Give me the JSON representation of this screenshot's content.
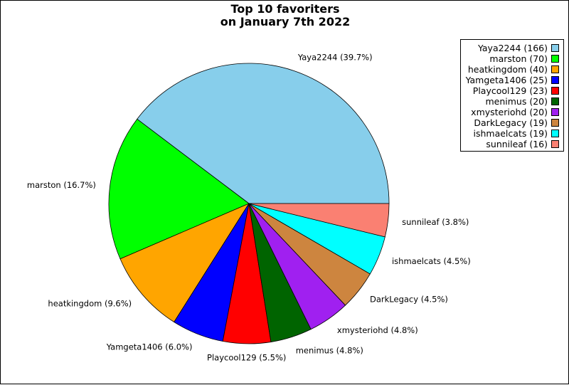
{
  "chart_data": {
    "type": "pie",
    "title": [
      "Top 10 favoriters",
      "on January 7th 2022"
    ],
    "slices": [
      {
        "label": "Yaya2244",
        "count": 166,
        "pct": "39.7%",
        "color": "#87ceeb"
      },
      {
        "label": "marston",
        "count": 70,
        "pct": "16.7%",
        "color": "#00ff00"
      },
      {
        "label": "heatkingdom",
        "count": 40,
        "pct": "9.6%",
        "color": "#ffa500"
      },
      {
        "label": "Yamgeta1406",
        "count": 25,
        "pct": "6.0%",
        "color": "#0000ff"
      },
      {
        "label": "Playcool129",
        "count": 23,
        "pct": "5.5%",
        "color": "#ff0000"
      },
      {
        "label": "menimus",
        "count": 20,
        "pct": "4.8%",
        "color": "#006400"
      },
      {
        "label": "xmysteriohd",
        "count": 20,
        "pct": "4.8%",
        "color": "#a020f0"
      },
      {
        "label": "DarkLegacy",
        "count": 19,
        "pct": "4.5%",
        "color": "#cd853f"
      },
      {
        "label": "ishmaelcats",
        "count": 19,
        "pct": "4.5%",
        "color": "#00ffff"
      },
      {
        "label": "sunnileaf",
        "count": 16,
        "pct": "3.8%",
        "color": "#fa8072"
      }
    ],
    "legend_position": "top-right"
  }
}
